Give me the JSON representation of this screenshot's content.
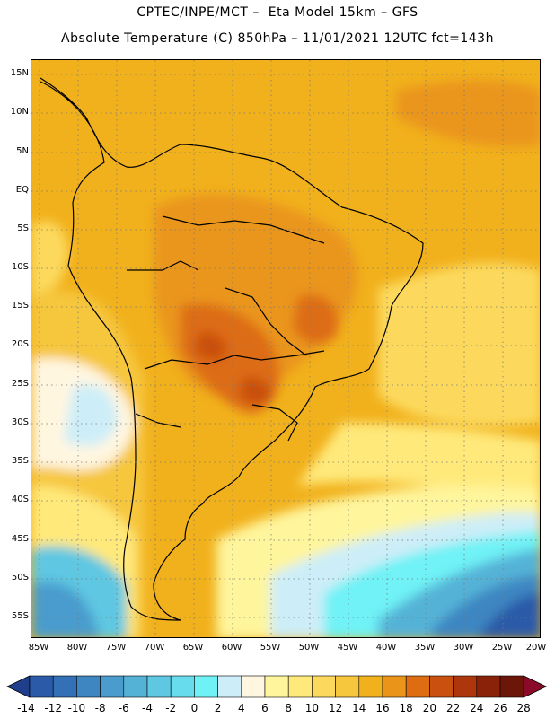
{
  "header": {
    "line1": "CPTEC/INPE/MCT –  Eta Model 15km – GFS",
    "line2": "Absolute Temperature (C) 850hPa – 11/01/2021 12UTC fct=143h"
  },
  "map": {
    "lat_labels": [
      "15N",
      "10N",
      "5N",
      "EQ",
      "5S",
      "10S",
      "15S",
      "20S",
      "25S",
      "30S",
      "35S",
      "40S",
      "45S",
      "50S",
      "55S"
    ],
    "lon_labels": [
      "85W",
      "80W",
      "75W",
      "70W",
      "65W",
      "60W",
      "55W",
      "50W",
      "45W",
      "40W",
      "35W",
      "30W",
      "25W",
      "20W"
    ]
  },
  "colorbar": {
    "labels": [
      "-14",
      "-12",
      "-10",
      "-8",
      "-6",
      "-4",
      "-2",
      "0",
      "2",
      "4",
      "6",
      "8",
      "10",
      "12",
      "14",
      "16",
      "18",
      "20",
      "22",
      "24",
      "26",
      "28"
    ],
    "colors": [
      "#1f3f8c",
      "#2a5aa8",
      "#3470b5",
      "#3d86c2",
      "#4a9ccd",
      "#55b2d7",
      "#5ec7e2",
      "#66dcec",
      "#6ff2f6",
      "#cdeef8",
      "#fff6e0",
      "#fff59c",
      "#ffe97a",
      "#fcd95d",
      "#f6c63c",
      "#f1b11c",
      "#ea951a",
      "#dd6c12",
      "#c9500f",
      "#ad360c",
      "#8a220a",
      "#6b1609",
      "#8b0a2a"
    ]
  }
}
